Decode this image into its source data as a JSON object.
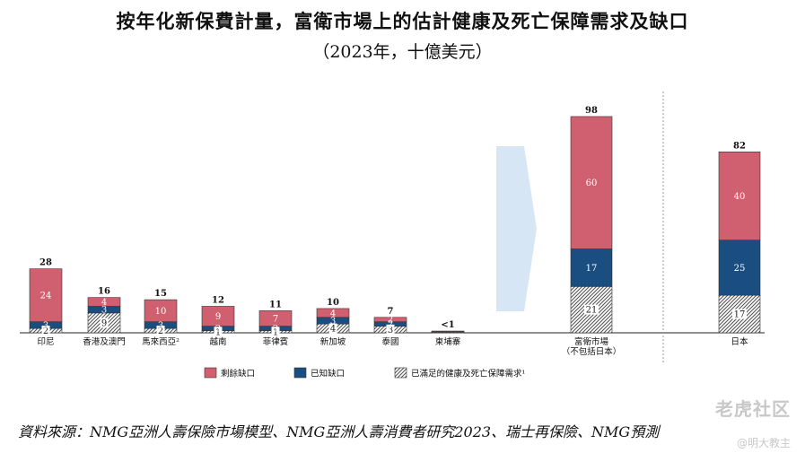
{
  "title": "按年化新保費計量，富衛市場上的估計健康及死亡保障需求及缺口",
  "subtitle": "（2023年，十億美元）",
  "source": "資料來源：NMG亞洲人壽保險市場模型、NMG亞洲人壽消費者研究2023、瑞士再保險、NMG預測",
  "watermark": {
    "brand": "老虎社区",
    "user": "@明大教主"
  },
  "colors": {
    "remaining": "#d0606f",
    "known": "#1a4d80",
    "met_hatch": "#555555",
    "arrow": "#d6e6f5",
    "divider": "#999999"
  },
  "chart_data": {
    "type": "bar",
    "stacked": true,
    "categories": [
      "印尼",
      "香港及澳門",
      "馬來西亞²",
      "越南",
      "菲律賓",
      "新加坡",
      "泰國",
      "柬埔寨",
      "富衛市場\n（不包括日本）",
      "日本"
    ],
    "series": [
      {
        "name": "已滿足的健康及死亡保障需求¹",
        "key": "met",
        "values": [
          2,
          9,
          2,
          1,
          1,
          4,
          3,
          0.3,
          21,
          17
        ],
        "labels": [
          "2",
          "9",
          "2",
          "1",
          "1",
          "4",
          "3",
          "",
          "21",
          "17"
        ]
      },
      {
        "name": "已知缺口",
        "key": "known",
        "values": [
          3,
          3,
          3,
          2,
          2,
          3,
          2,
          0.2,
          17,
          25
        ],
        "labels": [
          "3",
          "3",
          "3",
          "2",
          "2",
          "3",
          "2",
          "",
          "17",
          "25"
        ]
      },
      {
        "name": "剩餘缺口",
        "key": "remaining",
        "values": [
          24,
          4,
          10,
          9,
          7,
          4,
          2,
          0.3,
          60,
          40
        ],
        "labels": [
          "24",
          "4",
          "10",
          "9",
          "7",
          "4",
          "2",
          "",
          "60",
          "40"
        ]
      }
    ],
    "totals": [
      "28",
      "16",
      "15",
      "12",
      "11",
      "10",
      "7",
      "<1",
      "98",
      "82"
    ],
    "legend": [
      {
        "key": "remaining",
        "label": "剩餘缺口"
      },
      {
        "key": "known",
        "label": "已知缺口"
      },
      {
        "key": "met",
        "label": "已滿足的健康及死亡保障需求¹"
      }
    ],
    "legend_position": "bottom",
    "grid": false
  }
}
